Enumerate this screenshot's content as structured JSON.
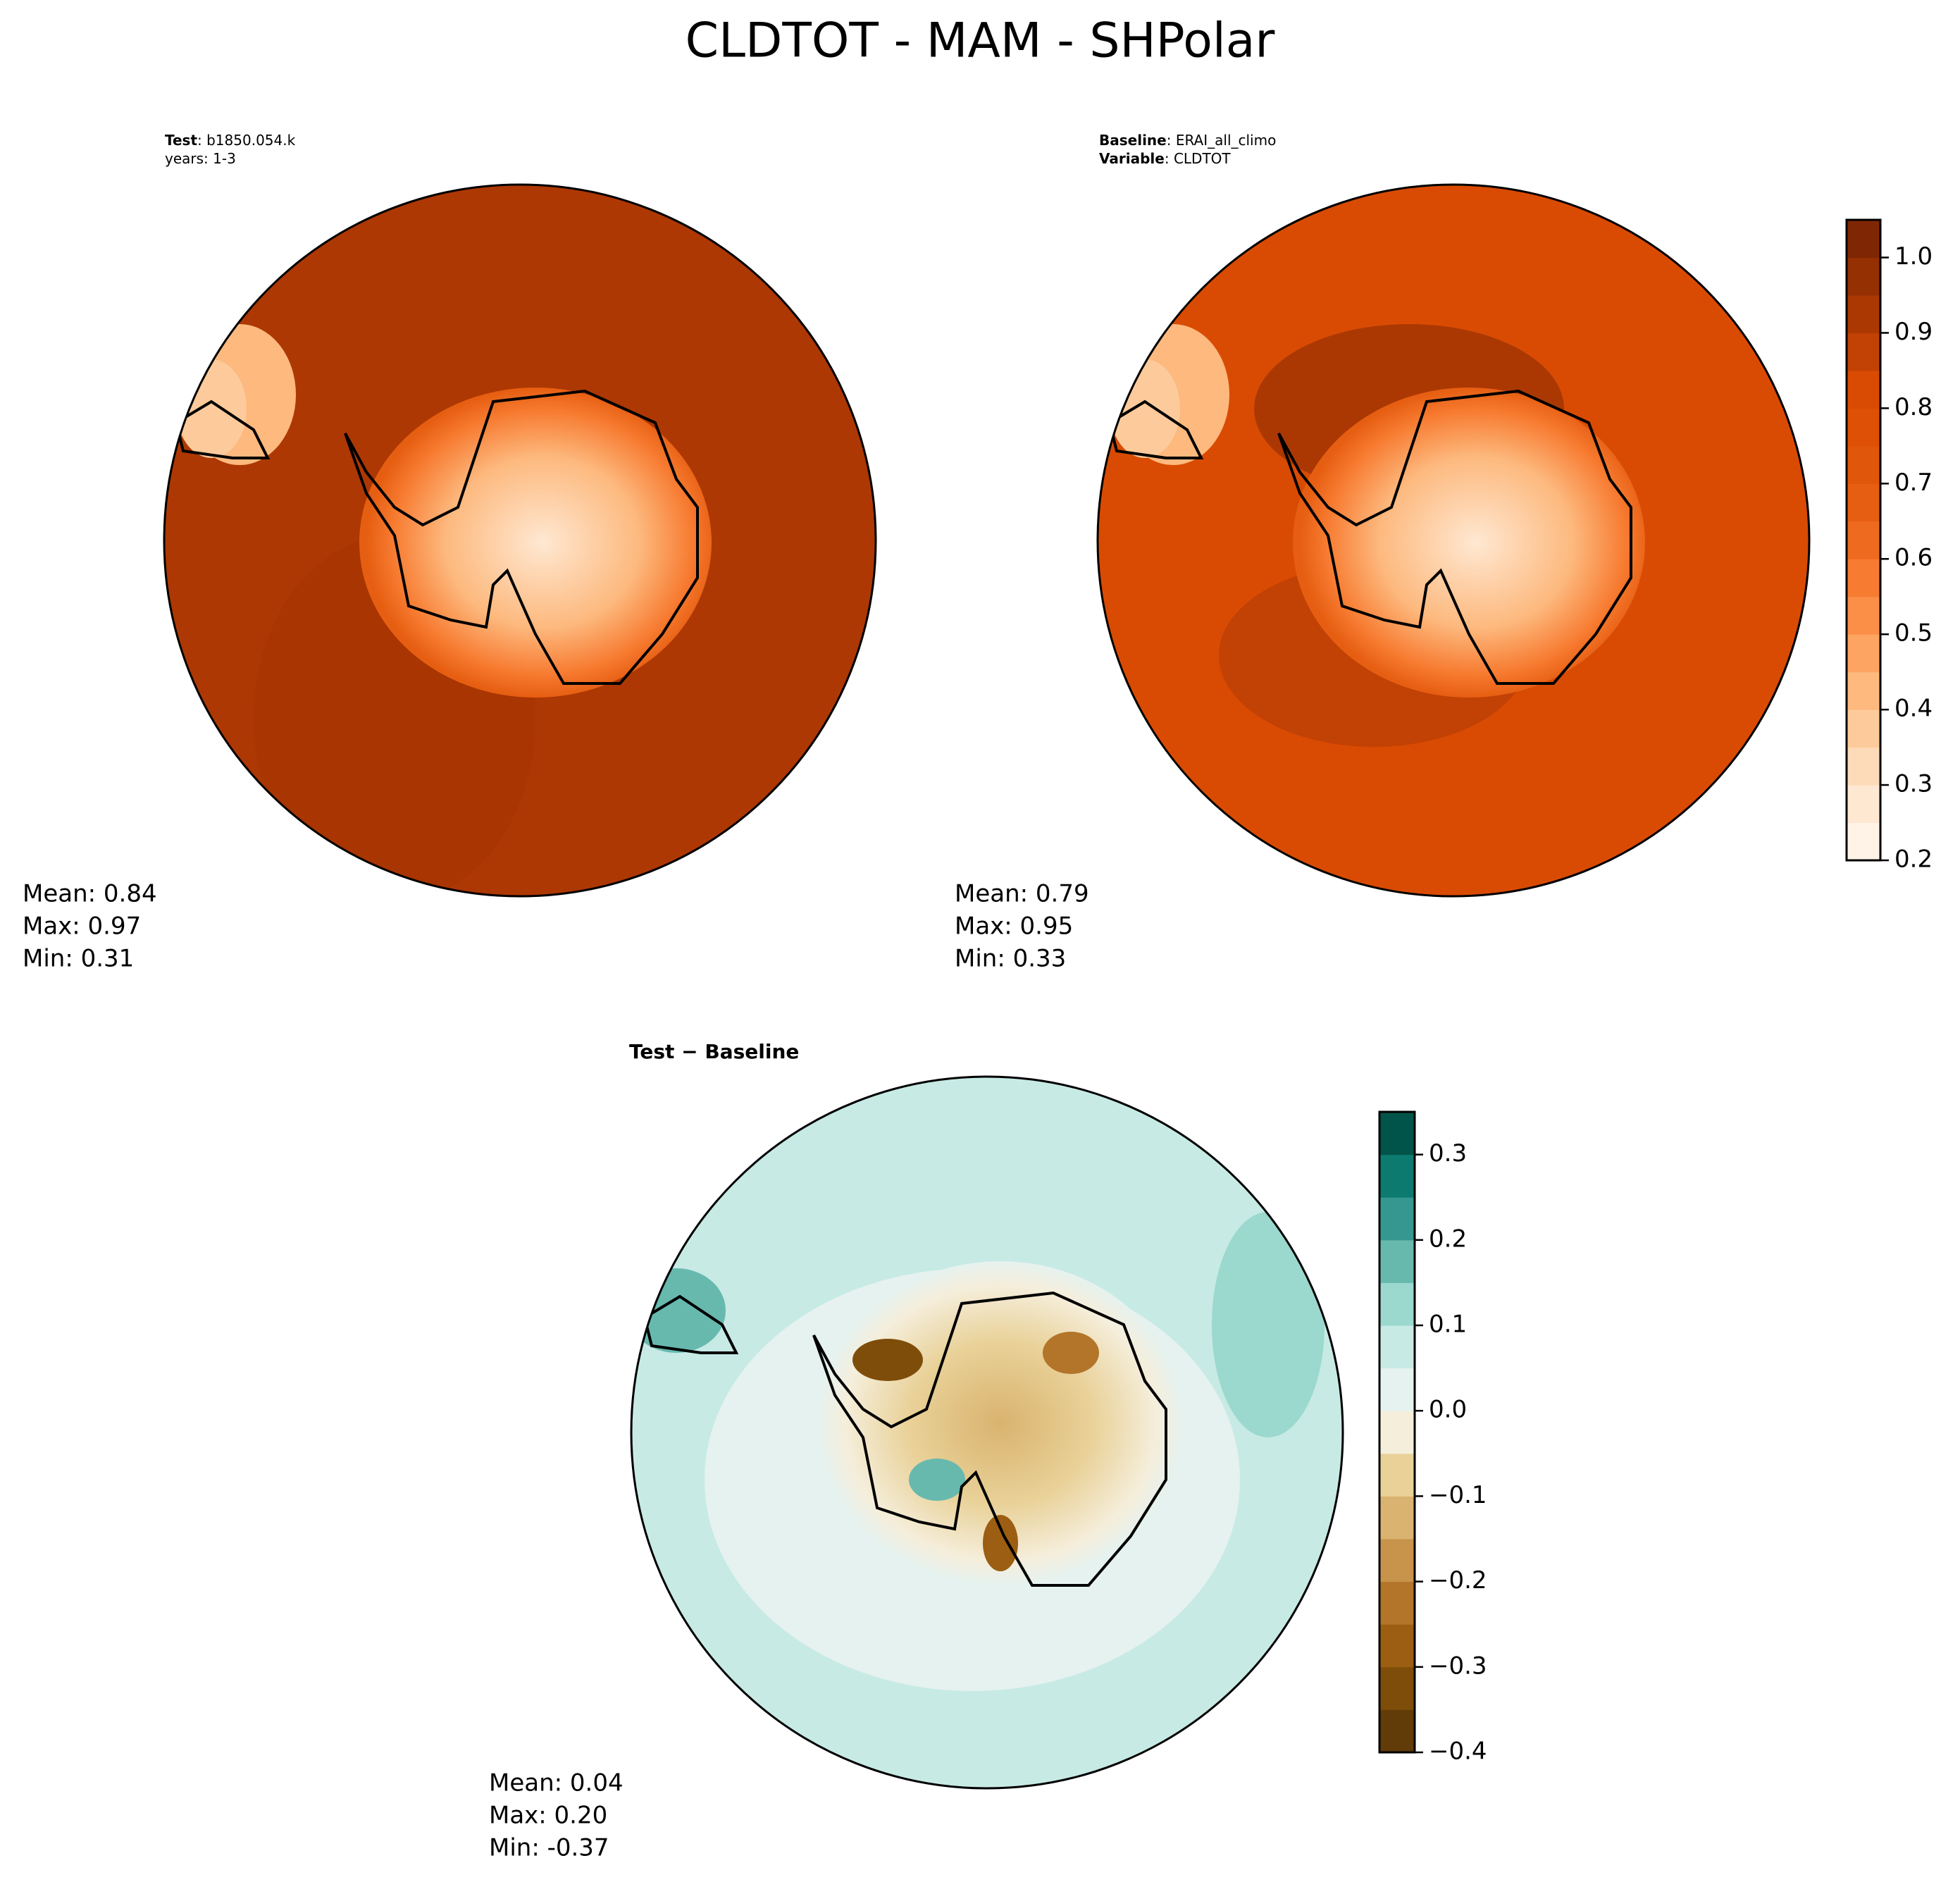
{
  "title": "CLDTOT - MAM - SHPolar",
  "panels": [
    {
      "header": [
        {
          "bold": "Test",
          "text": ": b1850.054.k"
        },
        {
          "text": "years: 1-3"
        }
      ],
      "stats": [
        "Mean:  0.84",
        "Max:  0.97",
        "Min:  0.31"
      ]
    },
    {
      "header": [
        {
          "bold": "Baseline",
          "text": ": ERAI_all_climo"
        },
        {
          "bold": "Variable",
          "text": ": CLDTOT"
        }
      ],
      "stats": [
        "Mean:  0.79",
        "Max:  0.95",
        "Min:  0.33"
      ]
    },
    {
      "header": [
        {
          "bold": "Test − Baseline"
        }
      ],
      "stats": [
        "Mean:  0.04",
        "Max:  0.20",
        "Min: -0.37"
      ]
    }
  ],
  "colorbars": [
    {
      "lim": [
        0.2,
        1.05
      ],
      "levels": [
        0.2,
        0.25,
        0.3,
        0.35,
        0.4,
        0.45,
        0.5,
        0.55,
        0.6,
        0.65,
        0.7,
        0.75,
        0.8,
        0.85,
        0.9,
        0.95,
        1.0,
        1.05
      ],
      "colors": [
        "#fff3e7",
        "#fee8d2",
        "#fddbb8",
        "#fdcb9b",
        "#fdb97e",
        "#fda463",
        "#fb8f48",
        "#f77b31",
        "#ee6a1e",
        "#e65e11",
        "#e0560a",
        "#dd5006",
        "#d94b03",
        "#c24104",
        "#ab3803",
        "#953003",
        "#7f2704"
      ],
      "ticks": [
        0.2,
        0.3,
        0.4,
        0.5,
        0.6,
        0.7,
        0.8,
        0.9,
        {
          "value": 1.0,
          "label": "1.0"
        }
      ]
    },
    {
      "lim": [
        -0.4,
        0.35
      ],
      "levels": [
        -0.4,
        -0.35,
        -0.3,
        -0.25,
        -0.2,
        -0.15,
        -0.1,
        -0.05,
        0.0,
        0.05,
        0.1,
        0.15,
        0.2,
        0.25,
        0.3,
        0.35
      ],
      "colors": [
        "#613b08",
        "#7e4d0a",
        "#9b5e12",
        "#b2752a",
        "#c8934a",
        "#d9b36f",
        "#e9d198",
        "#f5eedb",
        "#e6f2ef",
        "#c7eae5",
        "#9bd8cd",
        "#67b9ae",
        "#35978f",
        "#0d7a70",
        "#01544a"
      ],
      "ticks": [
        {
          "value": -0.4,
          "label": "−0.4"
        },
        {
          "value": -0.3,
          "label": "−0.3"
        },
        {
          "value": -0.2,
          "label": "−0.2"
        },
        {
          "value": -0.1,
          "label": "−0.1"
        },
        {
          "value": 0.0,
          "label": "0.0"
        },
        0.1,
        0.2,
        0.3
      ]
    }
  ]
}
